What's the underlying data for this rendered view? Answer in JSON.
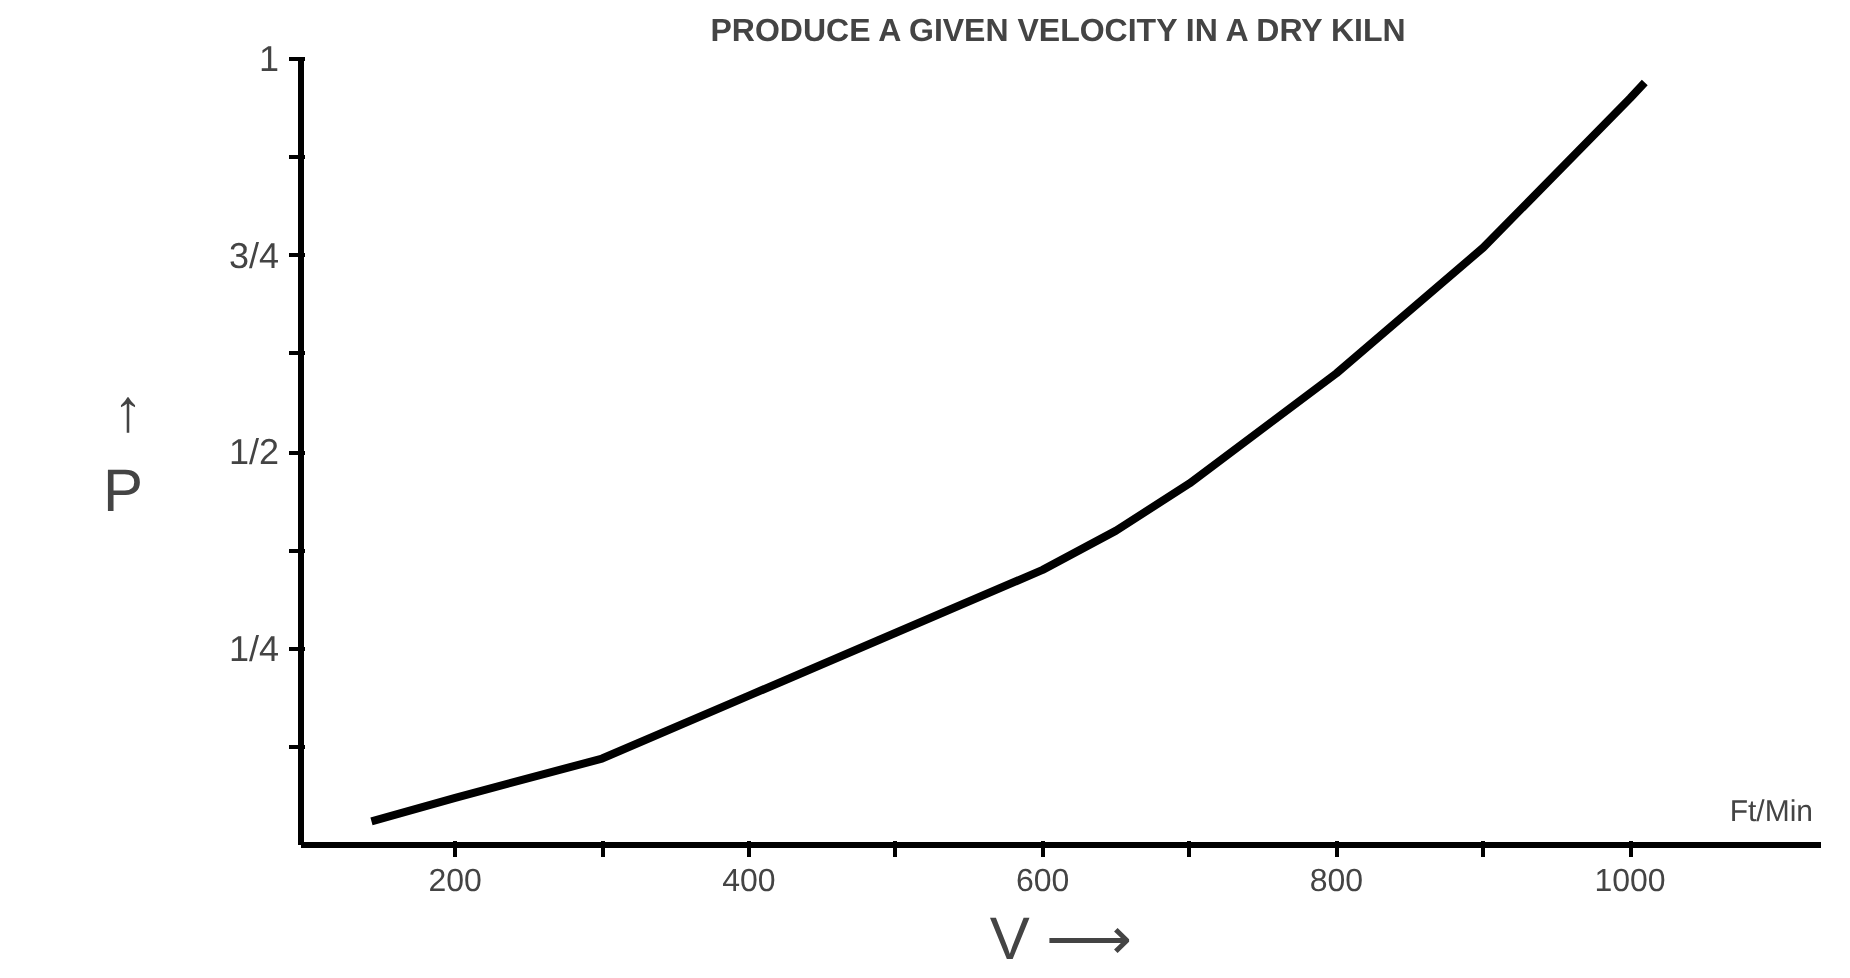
{
  "chart_data": {
    "type": "line",
    "title": "PRODUCE A GIVEN VELOCITY IN A DRY KILN",
    "xlabel": "V ⟶",
    "ylabel": "↑\nP",
    "annotations": [
      "Ft/Min"
    ],
    "x": [
      143,
      200,
      300,
      400,
      500,
      600,
      650,
      700,
      800,
      900,
      1000,
      1010
    ],
    "series": [
      {
        "color": "#000000",
        "values": [
          0.03,
          0.06,
          0.11,
          0.19,
          0.27,
          0.35,
          0.4,
          0.46,
          0.6,
          0.76,
          0.95,
          0.97
        ]
      }
    ],
    "xlim": [
      95,
      1130
    ],
    "ylim": [
      0,
      1
    ],
    "xticks": [
      200,
      {
        "value": 300,
        "label": null
      },
      400,
      {
        "value": 500,
        "label": null
      },
      600,
      {
        "value": 700,
        "label": null
      },
      800,
      {
        "value": 900,
        "label": null
      },
      1000
    ],
    "yticks": [
      {
        "value": 0.125,
        "label": null
      },
      {
        "value": 0.25,
        "label": "1/4"
      },
      {
        "value": 0.375,
        "label": null
      },
      {
        "value": 0.5,
        "label": "1/2"
      },
      {
        "value": 0.625,
        "label": null
      },
      {
        "value": 0.75,
        "label": "3/4"
      },
      {
        "value": 0.875,
        "label": null
      },
      1
    ],
    "grid": false,
    "marker": "none",
    "line_style": "solid"
  }
}
